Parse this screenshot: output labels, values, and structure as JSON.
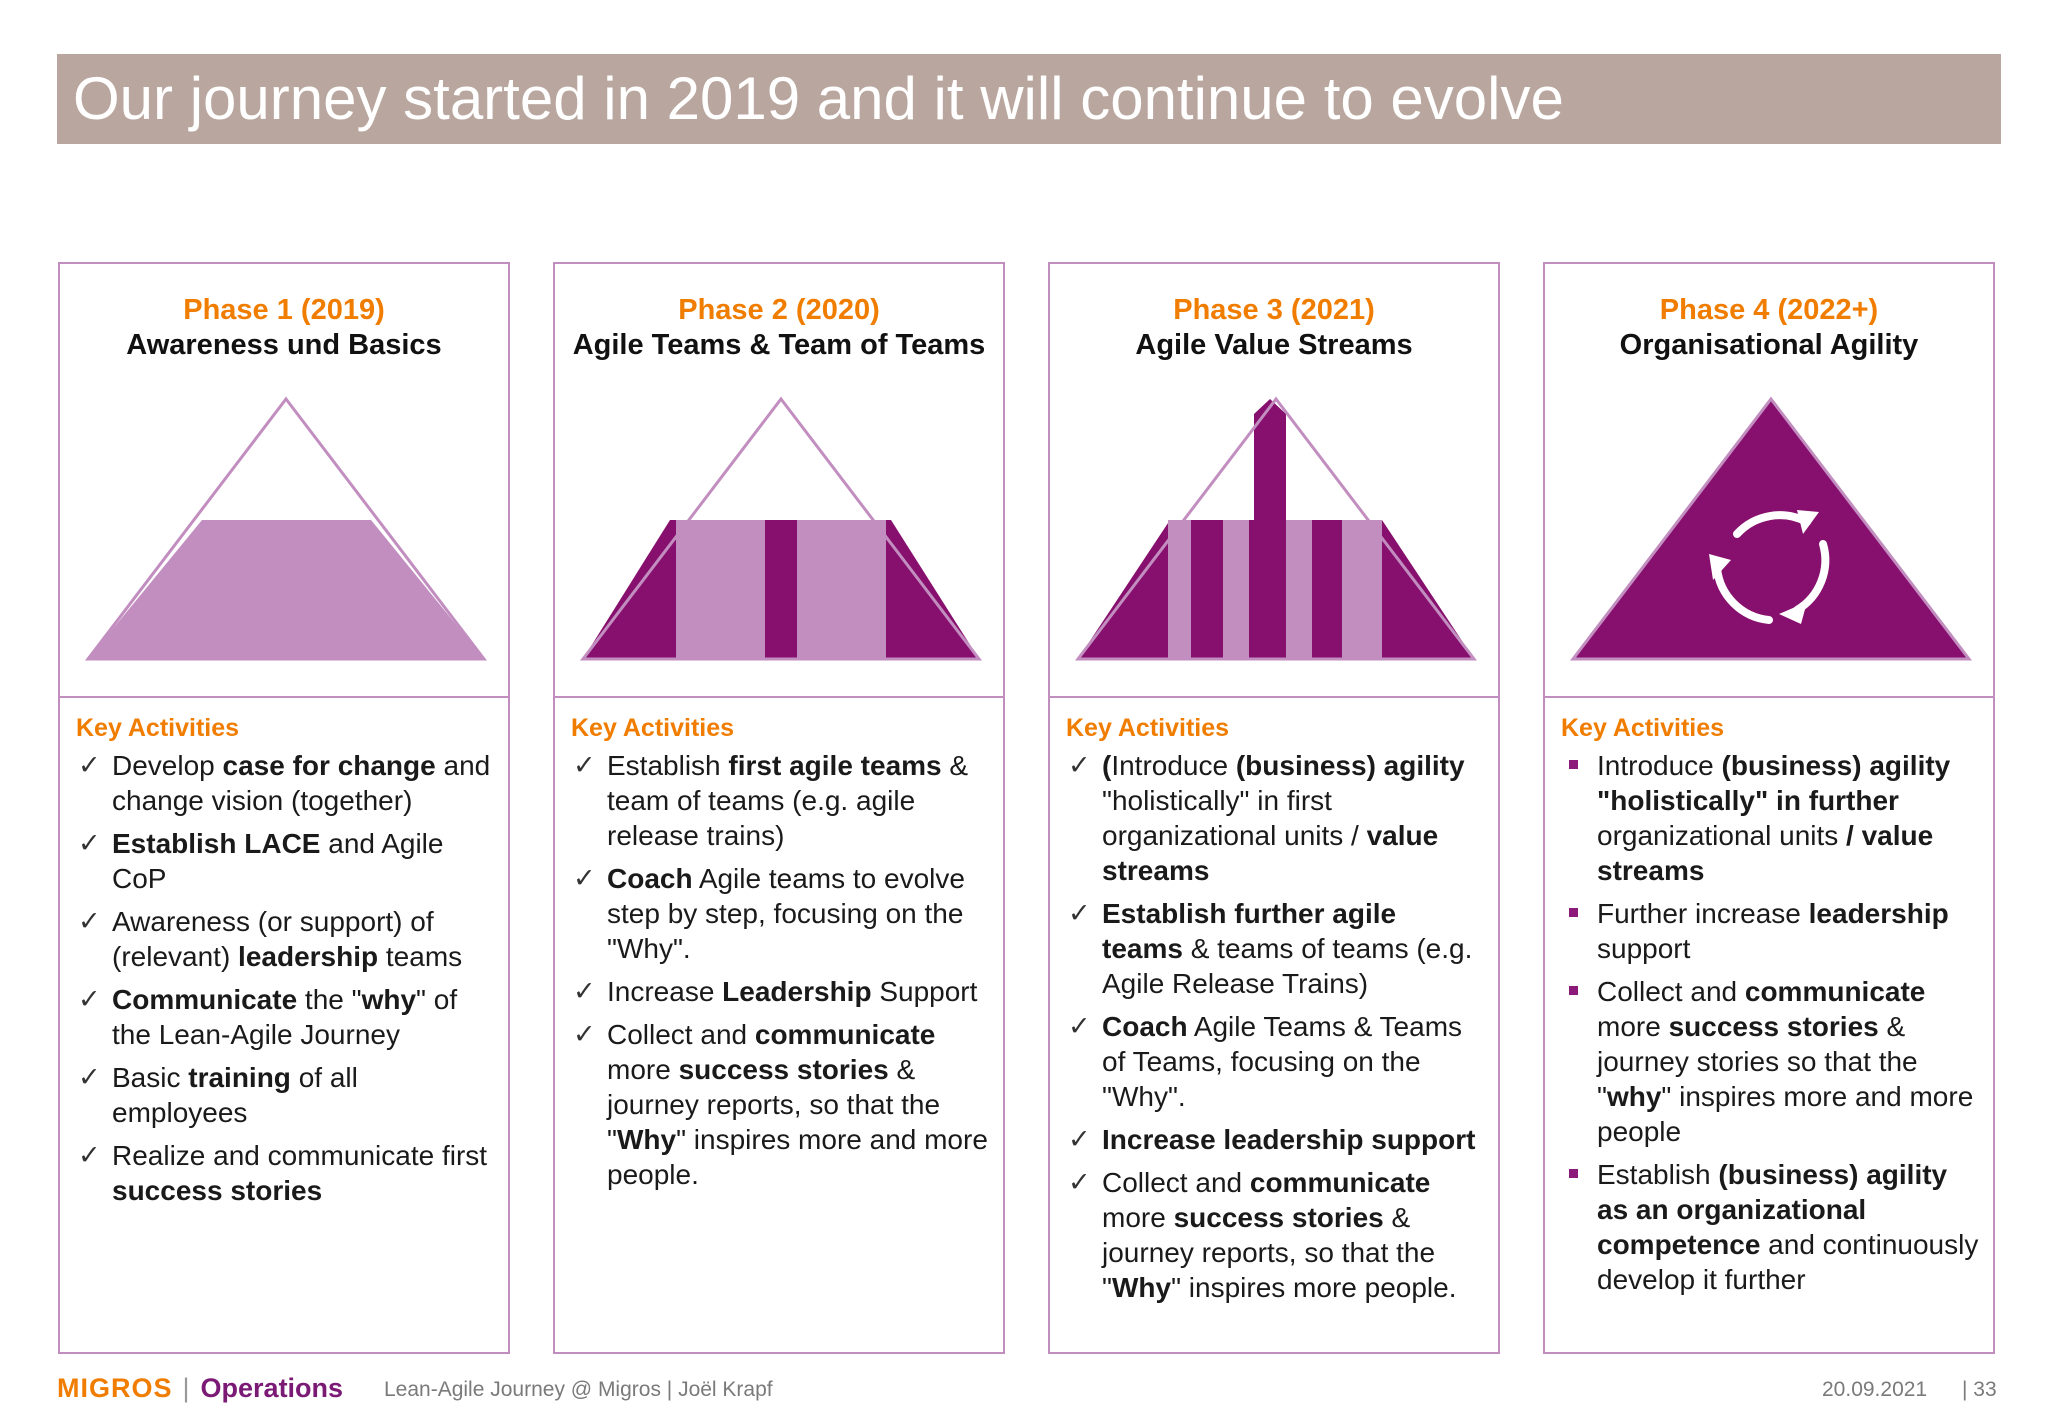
{
  "title": "Our journey started in 2019 and it will continue to evolve",
  "colors": {
    "title_bar": "#b9a79f",
    "orange": "#f07d00",
    "purple_dark": "#870f6e",
    "purple_light": "#c28ec0"
  },
  "phases": [
    {
      "label": "Phase 1 (2019)",
      "subtitle": "Awareness und Basics",
      "key_activities_label": "Key Activities",
      "fill_level": 0.5,
      "activities": [
        [
          {
            "t": "Develop "
          },
          {
            "t": "case for change",
            "b": true
          },
          {
            "t": " and change vision (together)"
          }
        ],
        [
          {
            "t": "Establish LACE",
            "b": true
          },
          {
            "t": " and Agile CoP"
          }
        ],
        [
          {
            "t": "Awareness (or support) of (relevant) "
          },
          {
            "t": "leadership",
            "b": true
          },
          {
            "t": " teams"
          }
        ],
        [
          {
            "t": "Communicate",
            "b": true
          },
          {
            "t": " the \""
          },
          {
            "t": "why",
            "b": true
          },
          {
            "t": "\" of the Lean-Agile Journey"
          }
        ],
        [
          {
            "t": "Basic "
          },
          {
            "t": "training",
            "b": true
          },
          {
            "t": " of all employees"
          }
        ],
        [
          {
            "t": "Realize and communicate first "
          },
          {
            "t": "success stories",
            "b": true
          }
        ]
      ]
    },
    {
      "label": "Phase 2 (2020)",
      "subtitle": "Agile Teams & Team of Teams",
      "key_activities_label": "Key Activities",
      "fill_level": 0.5,
      "activities": [
        [
          {
            "t": "Establish "
          },
          {
            "t": "first agile teams",
            "b": true
          },
          {
            "t": " & team of teams (e.g. agile release trains)"
          }
        ],
        [
          {
            "t": "Coach",
            "b": true
          },
          {
            "t": " Agile teams to evolve step by step, focusing on the \"Why\"."
          }
        ],
        [
          {
            "t": "Increase "
          },
          {
            "t": "Leadership",
            "b": true
          },
          {
            "t": " Support"
          }
        ],
        [
          {
            "t": "Collect and "
          },
          {
            "t": "communicate",
            "b": true
          },
          {
            "t": " more "
          },
          {
            "t": "success stories",
            "b": true
          },
          {
            "t": " & journey reports, so that the \""
          },
          {
            "t": "Why",
            "b": true
          },
          {
            "t": "\" inspires more and more people."
          }
        ]
      ]
    },
    {
      "label": "Phase 3 (2021)",
      "subtitle": "Agile Value Streams",
      "key_activities_label": "Key Activities",
      "fill_level": 0.5,
      "activities": [
        [
          {
            "t": "(",
            "b": true
          },
          {
            "t": "Introduce "
          },
          {
            "t": "(business) agility",
            "b": true
          },
          {
            "t": " \"holistically\" in first organizational units / "
          },
          {
            "t": "value streams",
            "b": true
          }
        ],
        [
          {
            "t": "Establish further agile teams",
            "b": true
          },
          {
            "t": " & teams of teams (e.g. Agile Release Trains)"
          }
        ],
        [
          {
            "t": "Coach",
            "b": true
          },
          {
            "t": " Agile Teams & Teams of Teams, focusing on the \"Why\"."
          }
        ],
        [
          {
            "t": "Increase leadership support",
            "b": true
          }
        ],
        [
          {
            "t": "Collect and "
          },
          {
            "t": "communicate",
            "b": true
          },
          {
            "t": " more "
          },
          {
            "t": "success stories",
            "b": true
          },
          {
            "t": " & journey reports, so that the \""
          },
          {
            "t": "Why",
            "b": true
          },
          {
            "t": "\" inspires more people."
          }
        ]
      ]
    },
    {
      "label": "Phase 4 (2022+)",
      "subtitle": "Organisational Agility",
      "key_activities_label": "Key Activities",
      "fill_level": 1.0,
      "activities": [
        [
          {
            "t": "Introduce "
          },
          {
            "t": "(business) agility \"holistically\" in further",
            "b": true
          },
          {
            "t": " organizational units "
          },
          {
            "t": "/ value streams",
            "b": true
          }
        ],
        [
          {
            "t": "Further increase "
          },
          {
            "t": "leadership",
            "b": true
          },
          {
            "t": " support"
          }
        ],
        [
          {
            "t": "Collect and "
          },
          {
            "t": "communicate",
            "b": true
          },
          {
            "t": " more "
          },
          {
            "t": "success stories",
            "b": true
          },
          {
            "t": " & journey stories so that the \""
          },
          {
            "t": "why",
            "b": true
          },
          {
            "t": "\" inspires more and more people"
          }
        ],
        [
          {
            "t": "Establish "
          },
          {
            "t": "(business) agility as an organizational competence",
            "b": true
          },
          {
            "t": " and continuously develop it further"
          }
        ]
      ]
    }
  ],
  "footer": {
    "logo_brand": "MIGROS",
    "logo_separator": "|",
    "logo_unit": "Operations",
    "center_text": "Lean-Agile Journey @ Migros | Joël Krapf",
    "date": "20.09.2021",
    "page": "| 33"
  }
}
